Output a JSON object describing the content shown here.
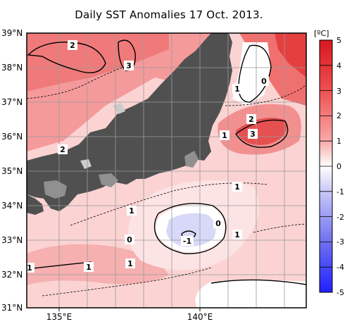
{
  "title": "Daily SST Anomalies 17 Oct. 2013.",
  "map": {
    "lat_labels": [
      "39°N",
      "38°N",
      "37°N",
      "36°N",
      "35°N",
      "34°N",
      "33°N",
      "32°N",
      "31°N"
    ],
    "lon_labels": [
      "135°E",
      "140°E"
    ]
  },
  "colorbar": {
    "unit": "[ºC]",
    "ticks": [
      "5",
      "4",
      "3",
      "2",
      "1",
      "0",
      "-1",
      "-2",
      "-3",
      "-4",
      "-5"
    ],
    "positive_color": "#e8202a",
    "negative_color": "#2030ff"
  },
  "contour_labels": [
    "2",
    "3",
    "0",
    "1",
    "2",
    "3",
    "1",
    "2",
    "1",
    "1",
    "0",
    "-1",
    "0",
    "1",
    "1",
    "1",
    "1"
  ],
  "colors": {
    "land": "#505050",
    "frame": "#000000",
    "grid": "#9a9a9a"
  }
}
